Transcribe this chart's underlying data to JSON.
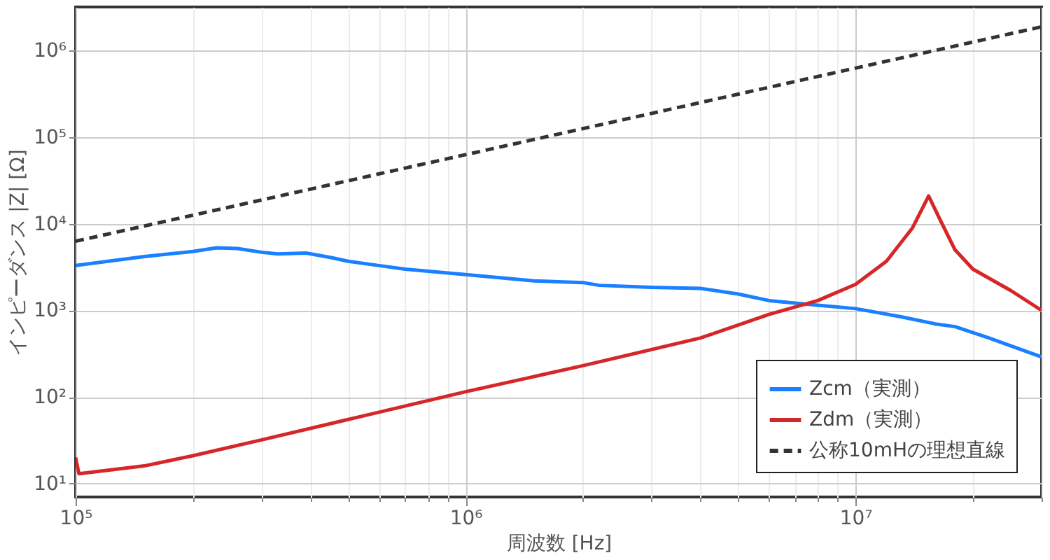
{
  "chart_data": {
    "type": "line",
    "xlabel": "周波数 [Hz]",
    "ylabel": "インピーダンス |Z| [Ω]",
    "log": "xy",
    "grid": true,
    "legend": "bottom right",
    "xlim": [
      100000,
      30000000
    ],
    "ylim": [
      7,
      3200000
    ],
    "xticks": [
      {
        "value": 100000,
        "label": "10⁵"
      },
      {
        "value": 200000,
        "label": null
      },
      {
        "value": 300000,
        "label": null
      },
      {
        "value": 400000,
        "label": null
      },
      {
        "value": 500000,
        "label": null
      },
      {
        "value": 600000,
        "label": null
      },
      {
        "value": 700000,
        "label": null
      },
      {
        "value": 800000,
        "label": null
      },
      {
        "value": 900000,
        "label": null
      },
      {
        "value": 1000000,
        "label": "10⁶"
      },
      {
        "value": 2000000,
        "label": null
      },
      {
        "value": 3000000,
        "label": null
      },
      {
        "value": 4000000,
        "label": null
      },
      {
        "value": 5000000,
        "label": null
      },
      {
        "value": 6000000,
        "label": null
      },
      {
        "value": 7000000,
        "label": null
      },
      {
        "value": 8000000,
        "label": null
      },
      {
        "value": 9000000,
        "label": null
      },
      {
        "value": 10000000,
        "label": "10⁷"
      },
      {
        "value": 20000000,
        "label": null
      },
      {
        "value": 30000000,
        "label": null
      }
    ],
    "yticks": [
      {
        "value": 10,
        "label": "10¹"
      },
      {
        "value": 100,
        "label": "10²"
      },
      {
        "value": 1000,
        "label": "10³"
      },
      {
        "value": 10000,
        "label": "10⁴"
      },
      {
        "value": 100000,
        "label": "10⁵"
      },
      {
        "value": 1000000,
        "label": "10⁶"
      }
    ],
    "series": [
      {
        "name": "Zcm（実測）",
        "color": "#1a80ff",
        "line_style": "solid",
        "x": [
          100000,
          150000,
          200000,
          230000,
          260000,
          300000,
          330000,
          390000,
          450000,
          500000,
          600000,
          700000,
          1000000,
          1500000,
          2000000,
          2200000,
          3000000,
          4000000,
          5000000,
          6000000,
          8000000,
          10000000,
          13000000,
          16000000,
          18000000,
          22000000,
          30000000
        ],
        "values": [
          3300,
          4200,
          4800,
          5300,
          5200,
          4700,
          4500,
          4600,
          4100,
          3700,
          3300,
          3000,
          2600,
          2200,
          2100,
          1950,
          1850,
          1800,
          1550,
          1300,
          1150,
          1050,
          850,
          700,
          650,
          480,
          290
        ]
      },
      {
        "name": "Zdm（実測）",
        "color": "#d62728",
        "line_style": "solid",
        "x": [
          100000,
          102000,
          150000,
          200000,
          300000,
          500000,
          1000000,
          2000000,
          4000000,
          6000000,
          8000000,
          10000000,
          12000000,
          14000000,
          15400000,
          16500000,
          18000000,
          20000000,
          25000000,
          30000000
        ],
        "values": [
          20,
          13,
          16,
          21,
          32,
          55,
          115,
          230,
          480,
          900,
          1300,
          2000,
          3700,
          9000,
          21000,
          11000,
          5000,
          3000,
          1700,
          1000
        ]
      },
      {
        "name": "公称10mHの理想直線",
        "color": "#333333",
        "line_style": "dashed",
        "x": [
          100000,
          30000000
        ],
        "values": [
          6300,
          1890000
        ]
      }
    ]
  }
}
